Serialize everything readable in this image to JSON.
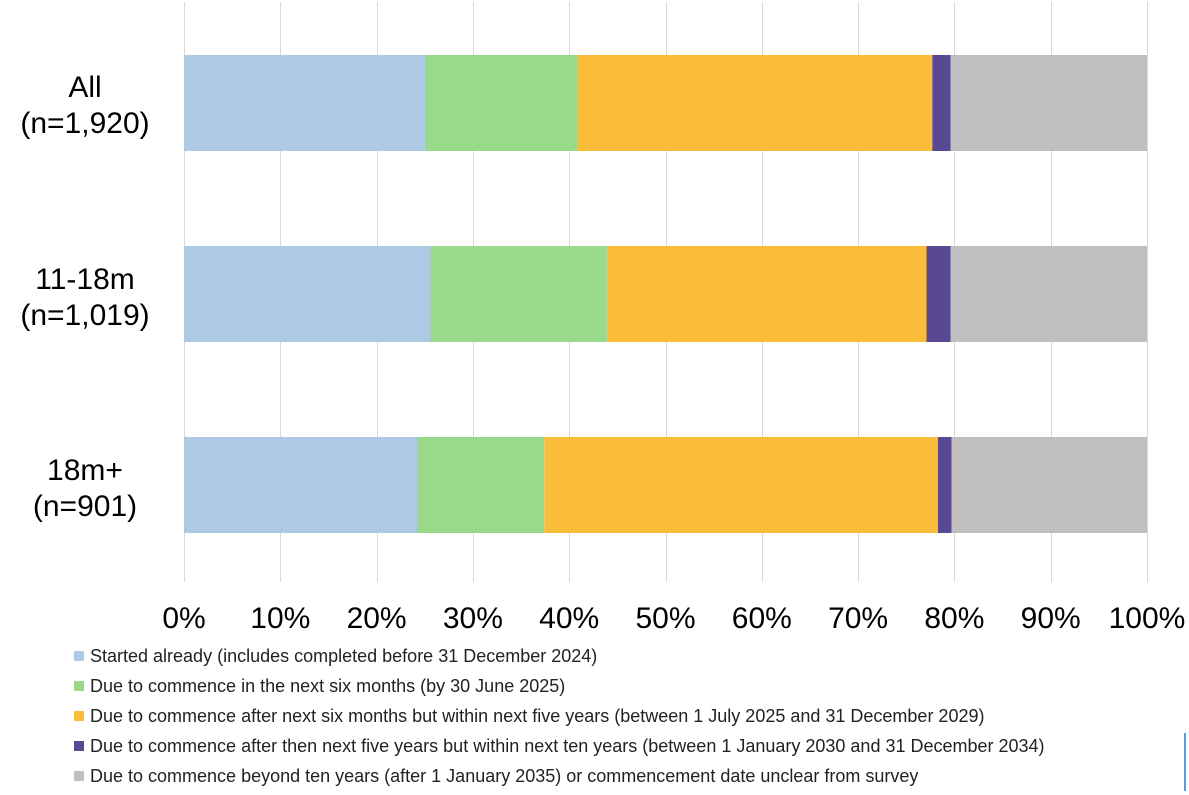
{
  "chart_data": {
    "type": "bar",
    "orientation": "horizontal",
    "stacked": true,
    "categories": [
      {
        "line1": "All",
        "line2": "(n=1,920)"
      },
      {
        "line1": "11-18m",
        "line2": "(n=1,019)"
      },
      {
        "line1": "18m+",
        "line2": "(n=901)"
      }
    ],
    "series": [
      {
        "name": "Started already (includes completed before 31 December 2024)",
        "color": "#adc9e3",
        "values": [
          25.0,
          25.6,
          24.2
        ]
      },
      {
        "name": "Due to commence in the next six months (by 30 June 2025)",
        "color": "#98d98a",
        "values": [
          15.8,
          18.3,
          13.2
        ]
      },
      {
        "name": "Due to commence after next six months but within next five years (between 1 July 2025 and 31 December 2029)",
        "color": "#fabd39",
        "values": [
          36.9,
          33.2,
          40.9
        ]
      },
      {
        "name": "Due to commence after then next five years but within next ten years (between 1 January 2030 and 31 December 2034)",
        "color": "#5a4893",
        "values": [
          1.9,
          2.5,
          1.4
        ]
      },
      {
        "name": "Due to commence beyond ten years (after 1 January 2035) or commencement date unclear from survey",
        "color": "#bfbfbf",
        "values": [
          20.4,
          20.4,
          20.3
        ]
      }
    ],
    "x_ticks": [
      "0%",
      "10%",
      "20%",
      "30%",
      "40%",
      "50%",
      "60%",
      "70%",
      "80%",
      "90%",
      "100%"
    ],
    "xlim": [
      0,
      100
    ],
    "grid": true,
    "legend_position": "bottom"
  }
}
